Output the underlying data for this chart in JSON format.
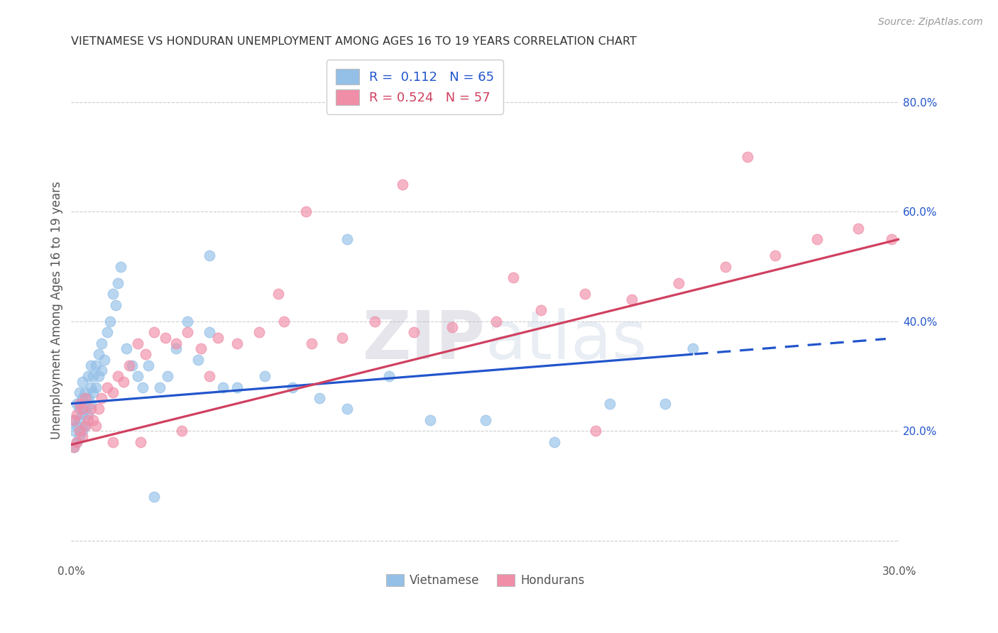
{
  "title": "VIETNAMESE VS HONDURAN UNEMPLOYMENT AMONG AGES 16 TO 19 YEARS CORRELATION CHART",
  "source": "Source: ZipAtlas.com",
  "ylabel": "Unemployment Among Ages 16 to 19 years",
  "xlim": [
    0.0,
    0.3
  ],
  "ylim": [
    -0.04,
    0.88
  ],
  "yticks_right": [
    0.0,
    0.2,
    0.4,
    0.6,
    0.8
  ],
  "ytick_labels_right": [
    "",
    "20.0%",
    "40.0%",
    "60.0%",
    "80.0%"
  ],
  "R_vietnamese": 0.112,
  "N_vietnamese": 65,
  "R_honduran": 0.524,
  "N_honduran": 57,
  "legend_label_vietnamese": "Vietnamese",
  "legend_label_honduran": "Hondurans",
  "blue_color": "#94C0E8",
  "pink_color": "#F08EA8",
  "blue_line_color": "#2255CC",
  "pink_line_color": "#D04060",
  "watermark_zip": "ZIP",
  "watermark_atlas": "atlas",
  "background_color": "#FFFFFF",
  "title_color": "#333333",
  "axis_label_color": "#555555",
  "tick_color": "#555555",
  "grid_color": "#CCCCCC",
  "source_color": "#999999",
  "blue_line_intercept": 0.25,
  "blue_line_slope": 0.4,
  "blue_line_solid_end": 0.225,
  "blue_line_end": 0.295,
  "pink_line_intercept": 0.175,
  "pink_line_slope": 1.25,
  "pink_line_end": 0.3,
  "viet_x": [
    0.001,
    0.001,
    0.001,
    0.002,
    0.002,
    0.002,
    0.003,
    0.003,
    0.003,
    0.003,
    0.004,
    0.004,
    0.004,
    0.004,
    0.005,
    0.005,
    0.005,
    0.006,
    0.006,
    0.006,
    0.007,
    0.007,
    0.007,
    0.008,
    0.008,
    0.009,
    0.009,
    0.01,
    0.01,
    0.011,
    0.011,
    0.012,
    0.013,
    0.014,
    0.015,
    0.016,
    0.017,
    0.018,
    0.02,
    0.022,
    0.024,
    0.026,
    0.028,
    0.032,
    0.035,
    0.038,
    0.042,
    0.046,
    0.05,
    0.055,
    0.06,
    0.07,
    0.08,
    0.09,
    0.1,
    0.115,
    0.13,
    0.15,
    0.175,
    0.195,
    0.215,
    0.225,
    0.1,
    0.05,
    0.03
  ],
  "viet_y": [
    0.17,
    0.2,
    0.22,
    0.18,
    0.21,
    0.25,
    0.19,
    0.22,
    0.24,
    0.27,
    0.2,
    0.23,
    0.26,
    0.29,
    0.21,
    0.24,
    0.27,
    0.23,
    0.26,
    0.3,
    0.25,
    0.28,
    0.32,
    0.27,
    0.3,
    0.28,
    0.32,
    0.3,
    0.34,
    0.31,
    0.36,
    0.33,
    0.38,
    0.4,
    0.45,
    0.43,
    0.47,
    0.5,
    0.35,
    0.32,
    0.3,
    0.28,
    0.32,
    0.28,
    0.3,
    0.35,
    0.4,
    0.33,
    0.38,
    0.28,
    0.28,
    0.3,
    0.28,
    0.26,
    0.24,
    0.3,
    0.22,
    0.22,
    0.18,
    0.25,
    0.25,
    0.35,
    0.55,
    0.52,
    0.08
  ],
  "hond_x": [
    0.001,
    0.001,
    0.002,
    0.002,
    0.003,
    0.003,
    0.004,
    0.004,
    0.005,
    0.005,
    0.006,
    0.007,
    0.008,
    0.009,
    0.01,
    0.011,
    0.013,
    0.015,
    0.017,
    0.019,
    0.021,
    0.024,
    0.027,
    0.03,
    0.034,
    0.038,
    0.042,
    0.047,
    0.053,
    0.06,
    0.068,
    0.077,
    0.087,
    0.098,
    0.11,
    0.124,
    0.138,
    0.154,
    0.17,
    0.186,
    0.203,
    0.22,
    0.237,
    0.255,
    0.27,
    0.285,
    0.297,
    0.085,
    0.12,
    0.05,
    0.04,
    0.025,
    0.015,
    0.075,
    0.16,
    0.19,
    0.245
  ],
  "hond_y": [
    0.17,
    0.22,
    0.18,
    0.23,
    0.2,
    0.25,
    0.19,
    0.24,
    0.21,
    0.26,
    0.22,
    0.24,
    0.22,
    0.21,
    0.24,
    0.26,
    0.28,
    0.27,
    0.3,
    0.29,
    0.32,
    0.36,
    0.34,
    0.38,
    0.37,
    0.36,
    0.38,
    0.35,
    0.37,
    0.36,
    0.38,
    0.4,
    0.36,
    0.37,
    0.4,
    0.38,
    0.39,
    0.4,
    0.42,
    0.45,
    0.44,
    0.47,
    0.5,
    0.52,
    0.55,
    0.57,
    0.55,
    0.6,
    0.65,
    0.3,
    0.2,
    0.18,
    0.18,
    0.45,
    0.48,
    0.2,
    0.7
  ]
}
